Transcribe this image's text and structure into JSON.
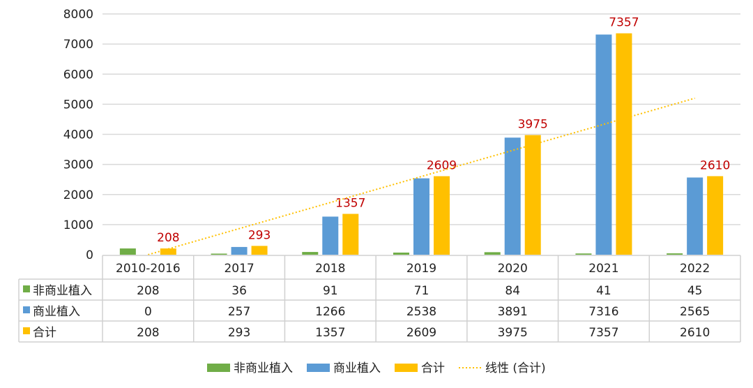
{
  "chart_data": {
    "type": "bar",
    "title": "",
    "categories": [
      "2010-2016",
      "2017",
      "2018",
      "2019",
      "2020",
      "2021",
      "2022"
    ],
    "series": [
      {
        "name": "非商业植入",
        "color": "#70ad47",
        "values": [
          208,
          36,
          91,
          71,
          84,
          41,
          45
        ]
      },
      {
        "name": "商业植入",
        "color": "#5b9bd5",
        "values": [
          0,
          257,
          1266,
          2538,
          3891,
          7316,
          2565
        ]
      },
      {
        "name": "合计",
        "color": "#ffc000",
        "values": [
          208,
          293,
          1357,
          2609,
          3975,
          7357,
          2610
        ]
      }
    ],
    "data_labels_series": "合计",
    "data_label_color": "#c00000",
    "trendline": {
      "name": "线性 (合计)",
      "type": "linear",
      "color": "#ffc000",
      "start_value": 0,
      "end_value": 5200
    },
    "ylim": [
      0,
      8000
    ],
    "yticks": [
      0,
      1000,
      2000,
      3000,
      4000,
      5000,
      6000,
      7000,
      8000
    ],
    "grid": true,
    "data_table": true,
    "legend_position": "bottom"
  }
}
